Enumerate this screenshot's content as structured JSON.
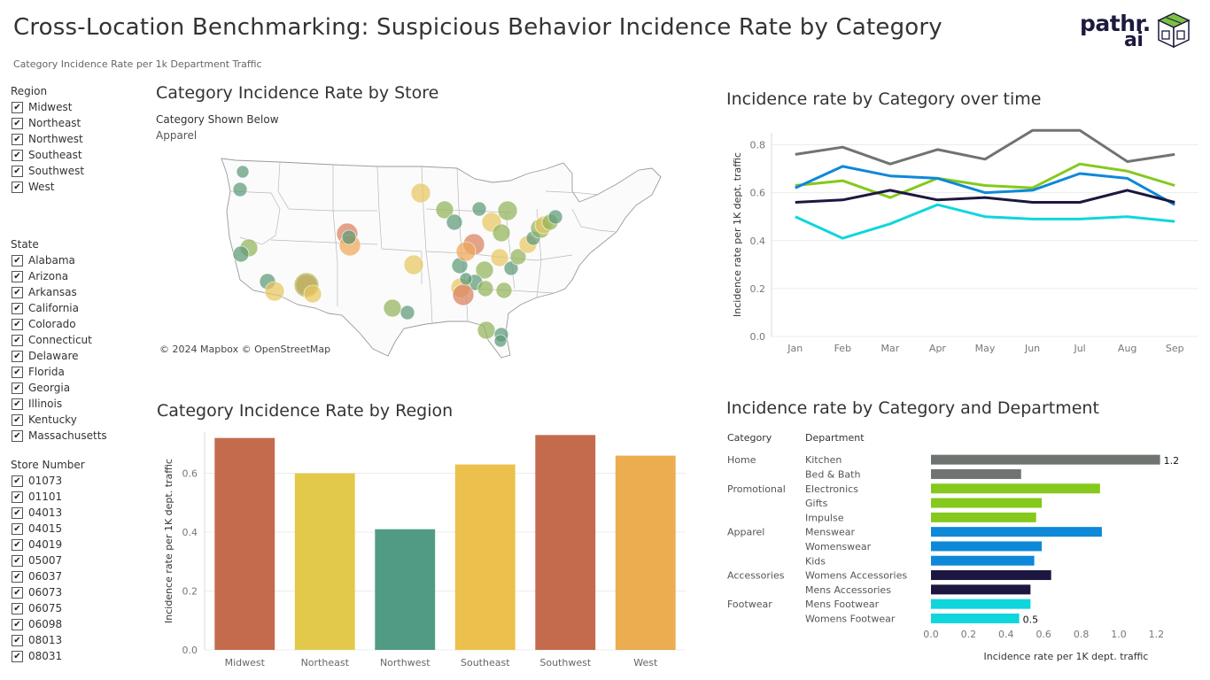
{
  "title": "Cross-Location Benchmarking: Suspicious Behavior Incidence Rate by Category",
  "subtitle": "Category Incidence Rate per 1k Department Traffic",
  "logo": {
    "text_top": "pathr.",
    "text_bottom": "ai"
  },
  "filters": {
    "region": {
      "title": "Region",
      "items": [
        "Midwest",
        "Northeast",
        "Northwest",
        "Southeast",
        "Southwest",
        "West"
      ]
    },
    "state": {
      "title": "State",
      "items": [
        "Alabama",
        "Arizona",
        "Arkansas",
        "California",
        "Colorado",
        "Connecticut",
        "Delaware",
        "Florida",
        "Georgia",
        "Illinois",
        "Kentucky",
        "Massachusetts"
      ]
    },
    "store": {
      "title": "Store Number",
      "items": [
        "01073",
        "01101",
        "04013",
        "04015",
        "04019",
        "05007",
        "06037",
        "06073",
        "06075",
        "06098",
        "08013",
        "08031"
      ]
    },
    "check_glyph": "✔"
  },
  "map_panel": {
    "title": "Category Incidence Rate by Store",
    "shown_label": "Category Shown Below",
    "shown_value": "Apparel",
    "attribution": "© 2024 Mapbox © OpenStreetMap"
  },
  "colors": {
    "gray": "#6f7471",
    "green": "#84c91c",
    "blue": "#0e88d8",
    "navy": "#1c1740",
    "cyan": "#0fd6dc",
    "bar_orange_red": "#c46b4e",
    "bar_yellow": "#e3c94a",
    "bar_teal": "#519b85",
    "bar_gold": "#ecc04c",
    "bar_orange": "#ebad50"
  },
  "chart_data": [
    {
      "id": "time",
      "type": "line",
      "title": "Incidence rate by Category over time",
      "ylabel": "Incidence rate per 1K dept. traffic",
      "categories": [
        "Jan",
        "Feb",
        "Mar",
        "Apr",
        "May",
        "Jun",
        "Jul",
        "Aug",
        "Sep"
      ],
      "ylim": [
        0,
        0.85
      ],
      "yticks": [
        "0.0",
        "0.2",
        "0.4",
        "0.6",
        "0.8"
      ],
      "grid": true,
      "series": [
        {
          "color_key": "gray",
          "values": [
            0.76,
            0.79,
            0.72,
            0.78,
            0.74,
            0.86,
            0.86,
            0.73,
            0.76
          ]
        },
        {
          "color_key": "green",
          "values": [
            0.63,
            0.65,
            0.58,
            0.66,
            0.63,
            0.62,
            0.72,
            0.69,
            0.63
          ]
        },
        {
          "color_key": "blue",
          "values": [
            0.62,
            0.71,
            0.67,
            0.66,
            0.6,
            0.61,
            0.68,
            0.66,
            0.55
          ]
        },
        {
          "color_key": "navy",
          "values": [
            0.56,
            0.57,
            0.61,
            0.57,
            0.58,
            0.56,
            0.56,
            0.61,
            0.56
          ]
        },
        {
          "color_key": "cyan",
          "values": [
            0.5,
            0.41,
            0.47,
            0.55,
            0.5,
            0.49,
            0.49,
            0.5,
            0.48
          ]
        }
      ]
    },
    {
      "id": "region",
      "type": "bar",
      "title": "Category Incidence Rate by Region",
      "ylabel": "Incidence rate per 1K dept. traffic",
      "categories": [
        "Midwest",
        "Northeast",
        "Northwest",
        "Southeast",
        "Southwest",
        "West"
      ],
      "values": [
        0.72,
        0.6,
        0.41,
        0.63,
        0.73,
        0.66
      ],
      "bar_colors": [
        "bar_orange_red",
        "bar_yellow",
        "bar_teal",
        "bar_gold",
        "bar_orange_red",
        "bar_orange"
      ],
      "ylim": [
        0,
        0.74
      ],
      "yticks": [
        "0.0",
        "0.2",
        "0.4",
        "0.6"
      ],
      "grid": true
    },
    {
      "id": "dept",
      "type": "bar",
      "orientation": "horizontal",
      "title": "Incidence rate by Category and Department",
      "col_category": "Category",
      "col_department": "Department",
      "xlabel": "Incidence rate per 1K dept. traffic",
      "xlim": [
        0,
        1.25
      ],
      "xticks": [
        "0.0",
        "0.2",
        "0.4",
        "0.6",
        "0.8",
        "1.0",
        "1.2"
      ],
      "rows": [
        {
          "category": "Home",
          "department": "Kitchen",
          "value": 1.22,
          "label": "1.2",
          "color_key": "gray"
        },
        {
          "category": "",
          "department": "Bed & Bath",
          "value": 0.48,
          "color_key": "gray"
        },
        {
          "category": "Promotional",
          "department": "Electronics",
          "value": 0.9,
          "color_key": "green"
        },
        {
          "category": "",
          "department": "Gifts",
          "value": 0.59,
          "color_key": "green"
        },
        {
          "category": "",
          "department": "Impulse",
          "value": 0.56,
          "color_key": "green"
        },
        {
          "category": "Apparel",
          "department": "Menswear",
          "value": 0.91,
          "color_key": "blue"
        },
        {
          "category": "",
          "department": "Womenswear",
          "value": 0.59,
          "color_key": "blue"
        },
        {
          "category": "",
          "department": "Kids",
          "value": 0.55,
          "color_key": "blue"
        },
        {
          "category": "Accessories",
          "department": "Womens Accessories",
          "value": 0.64,
          "color_key": "navy"
        },
        {
          "category": "",
          "department": "Mens Accessories",
          "value": 0.53,
          "color_key": "navy"
        },
        {
          "category": "Footwear",
          "department": "Mens Footwear",
          "value": 0.53,
          "color_key": "cyan"
        },
        {
          "category": "",
          "department": "Womens Footwear",
          "value": 0.47,
          "label": "0.5",
          "color_key": "cyan"
        }
      ]
    }
  ]
}
